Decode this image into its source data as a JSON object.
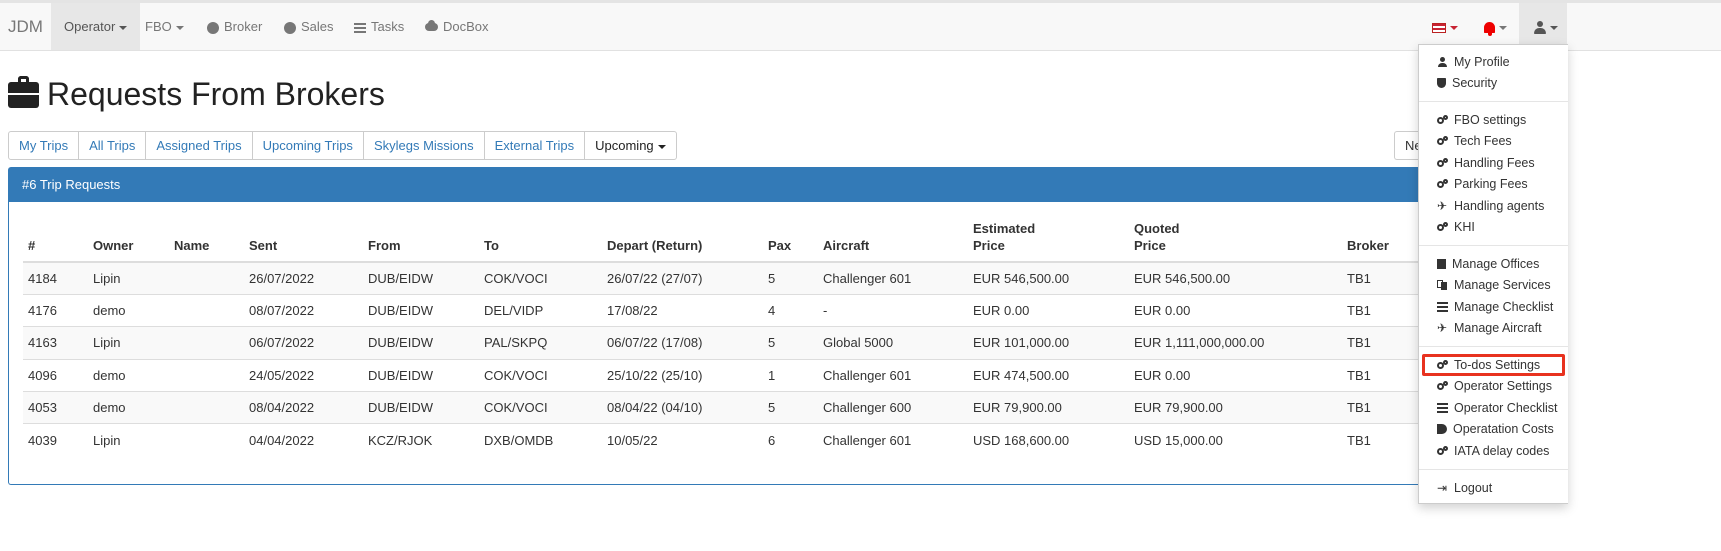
{
  "navbar": {
    "brand": "JDM",
    "items": [
      {
        "label": "Operator",
        "icon": "",
        "caret": true
      },
      {
        "label": "FBO",
        "icon": "",
        "caret": true
      },
      {
        "label": "Broker",
        "icon": "globe-icon"
      },
      {
        "label": "Sales",
        "icon": "globe-icon"
      },
      {
        "label": "Tasks",
        "icon": "list-icon"
      },
      {
        "label": "DocBox",
        "icon": "cloud-icon"
      }
    ],
    "right_icons": [
      "flag-icon",
      "bell-icon",
      "user-icon"
    ]
  },
  "page": {
    "title": "Requests From Brokers",
    "title_icon": "briefcase-icon"
  },
  "tabs": [
    "My Trips",
    "All Trips",
    "Assigned Trips",
    "Upcoming Trips",
    "Skylegs Missions",
    "External Trips"
  ],
  "filter_dropdown": "Upcoming",
  "new_button": "New",
  "panel": {
    "heading": "#6 Trip Requests"
  },
  "table": {
    "headers": {
      "id": "#",
      "owner": "Owner",
      "name": "Name",
      "sent": "Sent",
      "from": "From",
      "to": "To",
      "depart": "Depart (Return)",
      "pax": "Pax",
      "aircraft": "Aircraft",
      "est_1": "Estimated",
      "est_2": "Price",
      "quoted_1": "Quoted",
      "quoted_2": "Price",
      "broker": "Broker"
    },
    "rows": [
      [
        "4184",
        "Lipin",
        "",
        "26/07/2022",
        "DUB/EIDW",
        "COK/VOCI",
        "26/07/22 (27/07)",
        "5",
        "Challenger 601",
        "EUR 546,500.00",
        "EUR 546,500.00",
        "TB1"
      ],
      [
        "4176",
        "demo",
        "",
        "08/07/2022",
        "DUB/EIDW",
        "DEL/VIDP",
        "17/08/22",
        "4",
        "-",
        "EUR 0.00",
        "EUR 0.00",
        "TB1"
      ],
      [
        "4163",
        "Lipin",
        "",
        "06/07/2022",
        "DUB/EIDW",
        "PAL/SKPQ",
        "06/07/22 (17/08)",
        "5",
        "Global 5000",
        "EUR 101,000.00",
        "EUR 1,111,000,000.00",
        "TB1"
      ],
      [
        "4096",
        "demo",
        "",
        "24/05/2022",
        "DUB/EIDW",
        "COK/VOCI",
        "25/10/22 (25/10)",
        "1",
        "Challenger 601",
        "EUR 474,500.00",
        "EUR 0.00",
        "TB1"
      ],
      [
        "4053",
        "demo",
        "",
        "08/04/2022",
        "DUB/EIDW",
        "COK/VOCI",
        "08/04/22 (04/10)",
        "5",
        "Challenger 600",
        "EUR 79,900.00",
        "EUR 79,900.00",
        "TB1"
      ],
      [
        "4039",
        "Lipin",
        "",
        "04/04/2022",
        "KCZ/RJOK",
        "DXB/OMDB",
        "10/05/22",
        "6",
        "Challenger 601",
        "USD 168,600.00",
        "USD 15,000.00",
        "TB1"
      ]
    ]
  },
  "user_menu": {
    "items": [
      {
        "label": "My Profile",
        "icon": "person-icon"
      },
      {
        "label": "Security",
        "icon": "shield-icon"
      },
      {
        "label": "FBO settings",
        "icon": "gears-icon"
      },
      {
        "label": "Tech Fees",
        "icon": "gears-icon"
      },
      {
        "label": "Handling Fees",
        "icon": "gears-icon"
      },
      {
        "label": "Parking Fees",
        "icon": "gears-icon"
      },
      {
        "label": "Handling agents",
        "icon": "plane-icon"
      },
      {
        "label": "KHI",
        "icon": "gears-icon"
      },
      {
        "label": "Manage Offices",
        "icon": "building-icon"
      },
      {
        "label": "Manage Services",
        "icon": "copy-icon"
      },
      {
        "label": "Manage Checklist",
        "icon": "list-icon"
      },
      {
        "label": "Manage Aircraft",
        "icon": "plane-icon"
      },
      {
        "label": "To-dos Settings",
        "icon": "gears-icon",
        "highlighted": true
      },
      {
        "label": "Operator Settings",
        "icon": "gears-icon"
      },
      {
        "label": "Operator Checklist",
        "icon": "list-icon"
      },
      {
        "label": "Operatation Costs",
        "icon": "tags-icon"
      },
      {
        "label": "IATA delay codes",
        "icon": "gears-icon"
      },
      {
        "label": "Logout",
        "icon": "sign-out-icon"
      }
    ],
    "highlight_color": "#e8321f"
  },
  "colors": {
    "primary": "#337ab7",
    "navbar_bg": "#f8f8f8",
    "notification": "#e00000"
  }
}
